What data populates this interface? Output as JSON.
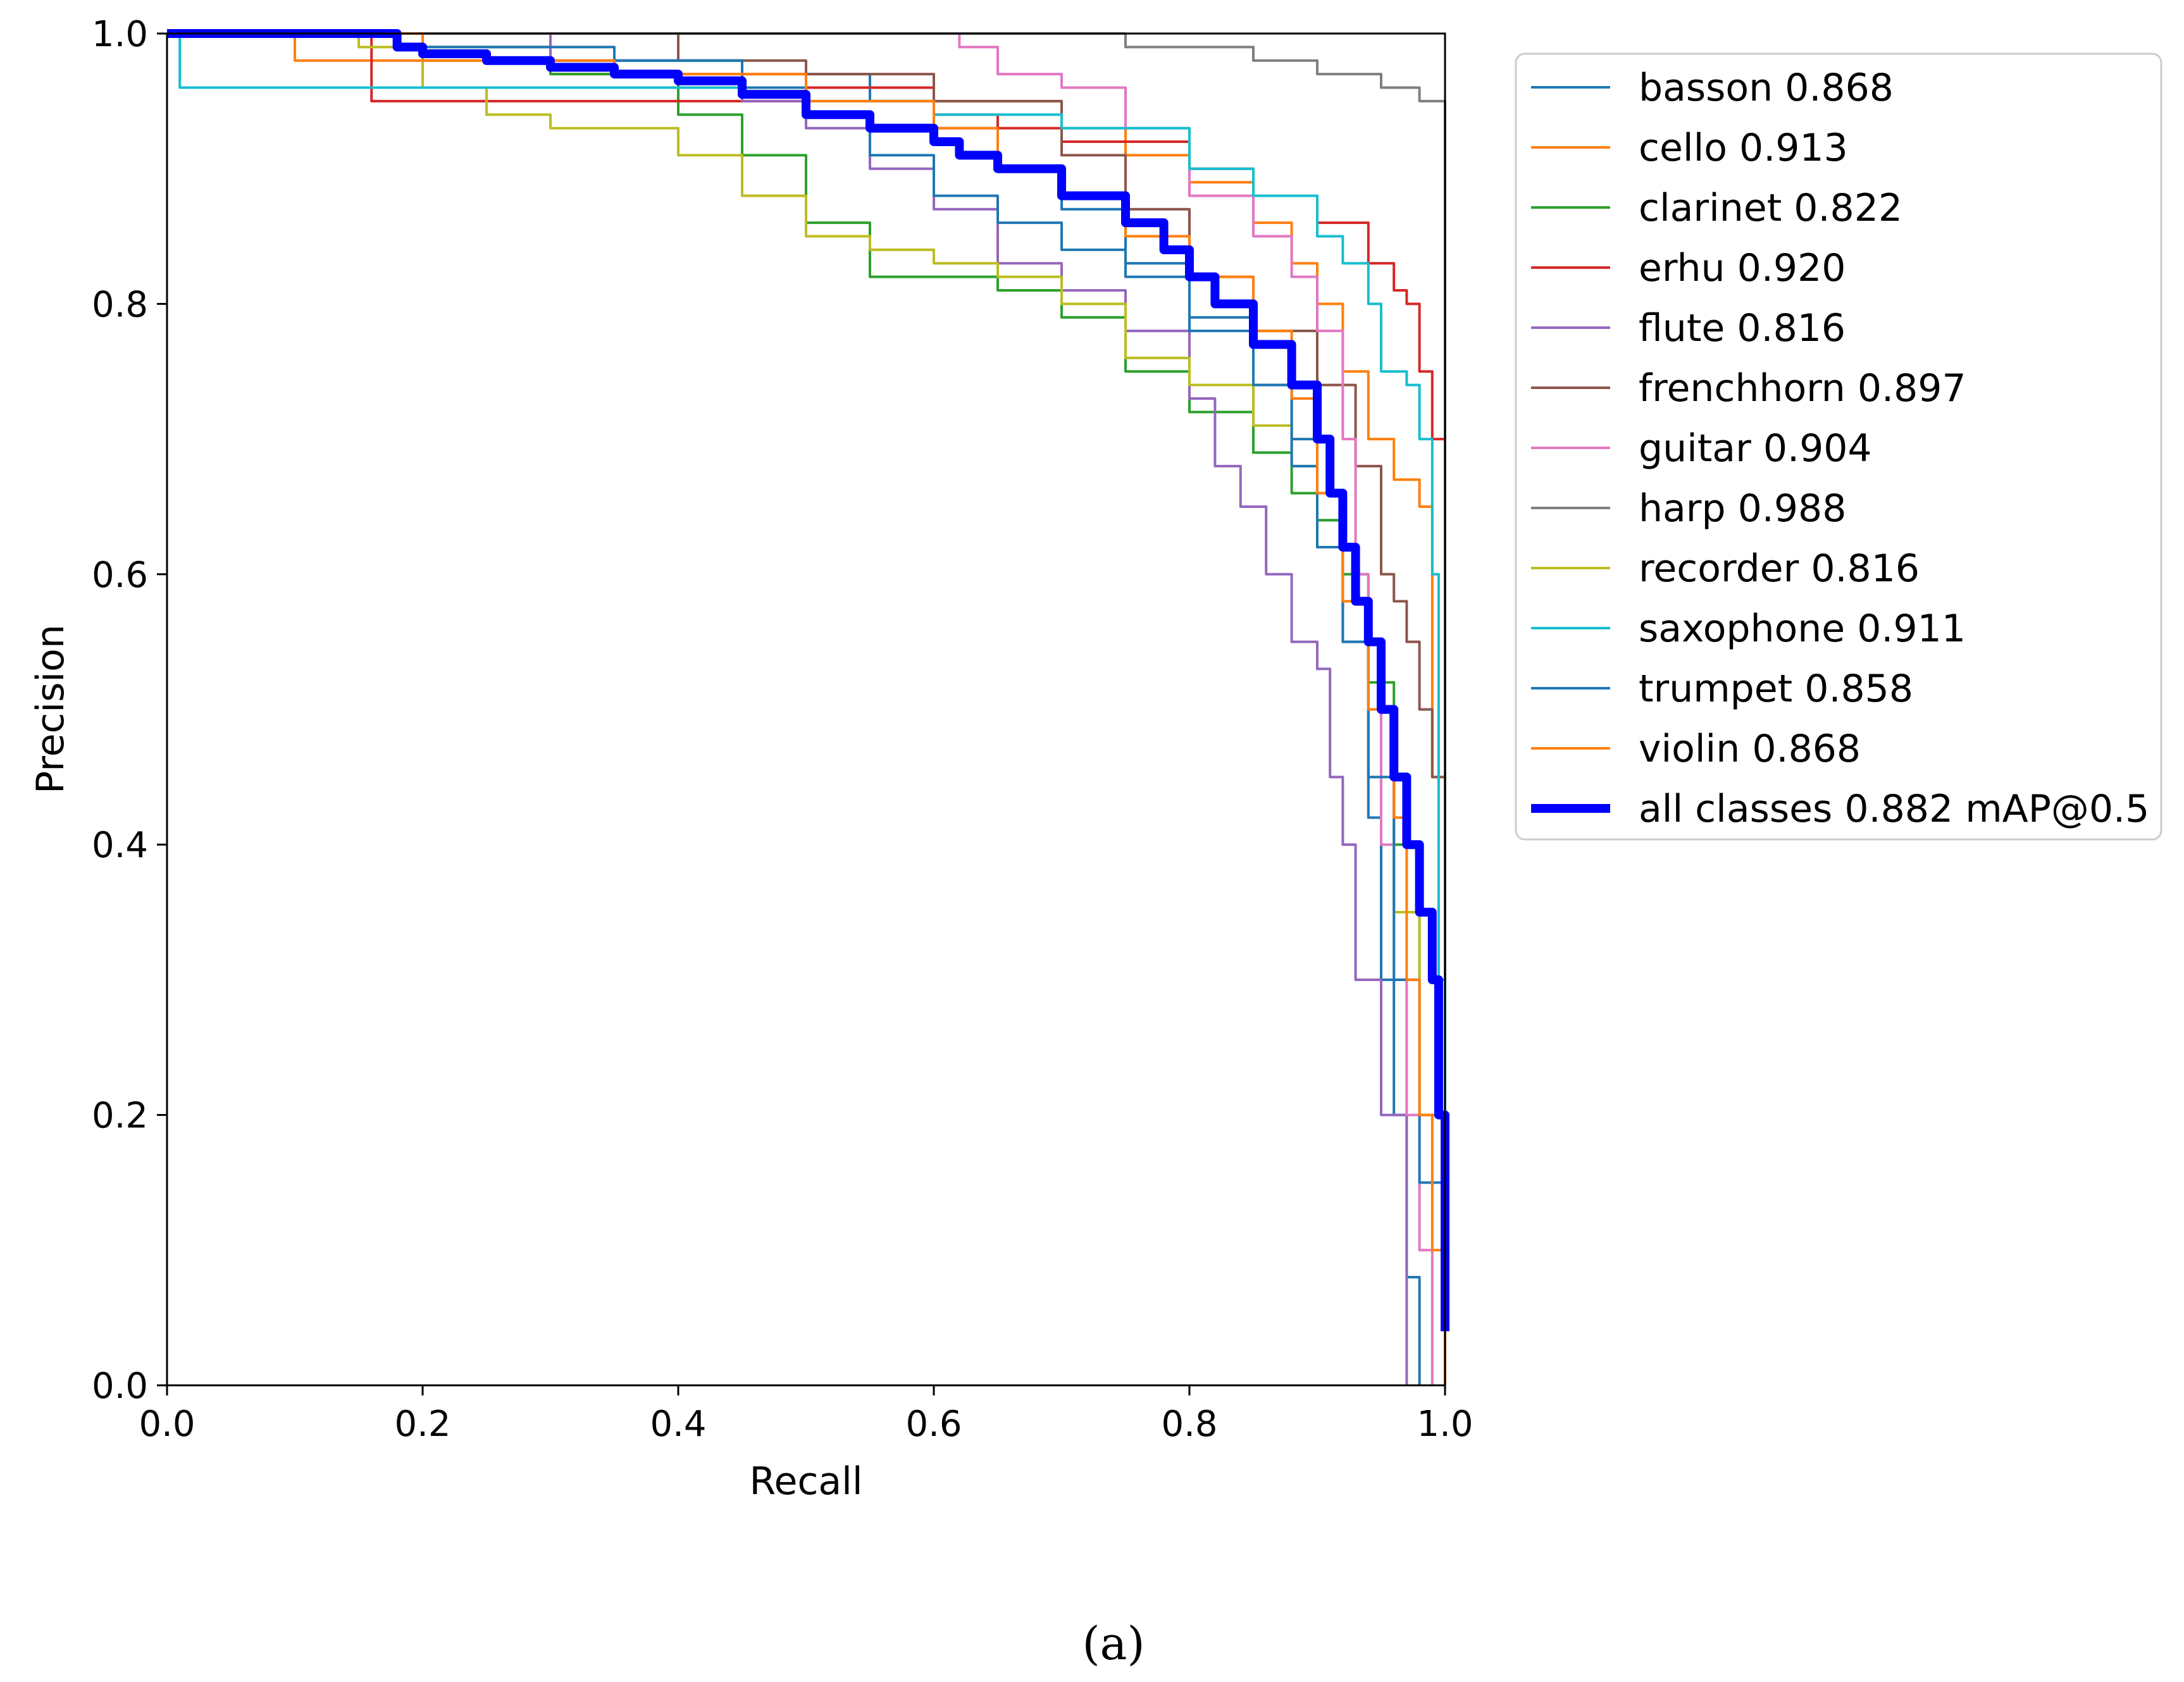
{
  "chart_data": {
    "type": "line",
    "title": "",
    "xlabel": "Recall",
    "ylabel": "Precision",
    "xlim": [
      0,
      1
    ],
    "ylim": [
      0,
      1
    ],
    "xticks": [
      "0.0",
      "0.2",
      "0.4",
      "0.6",
      "0.8",
      "1.0"
    ],
    "yticks": [
      "0.0",
      "0.2",
      "0.4",
      "0.6",
      "0.8",
      "1.0"
    ],
    "grid": false,
    "legend_position": "outside-right-top",
    "caption": "(a)",
    "series": [
      {
        "name": "basson 0.868",
        "color": "#1f77b4",
        "width": 4,
        "points": [
          [
            0,
            1
          ],
          [
            0.15,
            1
          ],
          [
            0.2,
            0.99
          ],
          [
            0.3,
            0.98
          ],
          [
            0.45,
            0.97
          ],
          [
            0.55,
            0.95
          ],
          [
            0.6,
            0.93
          ],
          [
            0.65,
            0.9
          ],
          [
            0.7,
            0.87
          ],
          [
            0.75,
            0.83
          ],
          [
            0.8,
            0.79
          ],
          [
            0.85,
            0.74
          ],
          [
            0.88,
            0.7
          ],
          [
            0.9,
            0.64
          ],
          [
            0.92,
            0.55
          ],
          [
            0.94,
            0.42
          ],
          [
            0.95,
            0.3
          ],
          [
            0.96,
            0.2
          ],
          [
            0.97,
            0.08
          ],
          [
            0.98,
            0
          ]
        ]
      },
      {
        "name": "cello 0.913",
        "color": "#ff7f0e",
        "width": 4,
        "points": [
          [
            0,
            1
          ],
          [
            0.1,
            0.98
          ],
          [
            0.3,
            0.97
          ],
          [
            0.5,
            0.96
          ],
          [
            0.6,
            0.95
          ],
          [
            0.7,
            0.93
          ],
          [
            0.75,
            0.91
          ],
          [
            0.8,
            0.89
          ],
          [
            0.85,
            0.86
          ],
          [
            0.88,
            0.83
          ],
          [
            0.9,
            0.8
          ],
          [
            0.92,
            0.75
          ],
          [
            0.94,
            0.7
          ],
          [
            0.96,
            0.67
          ],
          [
            0.98,
            0.65
          ],
          [
            0.99,
            0.45
          ],
          [
            1.0,
            0
          ]
        ]
      },
      {
        "name": "clarinet 0.822",
        "color": "#2ca02c",
        "width": 4,
        "points": [
          [
            0,
            1
          ],
          [
            0.2,
            0.99
          ],
          [
            0.3,
            0.97
          ],
          [
            0.4,
            0.94
          ],
          [
            0.45,
            0.91
          ],
          [
            0.5,
            0.86
          ],
          [
            0.55,
            0.82
          ],
          [
            0.65,
            0.81
          ],
          [
            0.7,
            0.79
          ],
          [
            0.75,
            0.75
          ],
          [
            0.8,
            0.72
          ],
          [
            0.85,
            0.69
          ],
          [
            0.88,
            0.66
          ],
          [
            0.9,
            0.64
          ],
          [
            0.92,
            0.6
          ],
          [
            0.94,
            0.52
          ],
          [
            0.96,
            0.4
          ],
          [
            0.98,
            0.2
          ],
          [
            1.0,
            0
          ]
        ]
      },
      {
        "name": "erhu 0.920",
        "color": "#d62728",
        "width": 4,
        "points": [
          [
            0,
            1
          ],
          [
            0.16,
            0.95
          ],
          [
            0.3,
            0.95
          ],
          [
            0.5,
            0.96
          ],
          [
            0.6,
            0.94
          ],
          [
            0.65,
            0.93
          ],
          [
            0.7,
            0.92
          ],
          [
            0.8,
            0.9
          ],
          [
            0.85,
            0.88
          ],
          [
            0.9,
            0.86
          ],
          [
            0.94,
            0.83
          ],
          [
            0.96,
            0.81
          ],
          [
            0.97,
            0.8
          ],
          [
            0.98,
            0.75
          ],
          [
            0.99,
            0.7
          ],
          [
            1.0,
            0.5
          ],
          [
            1.0,
            0
          ]
        ]
      },
      {
        "name": "flute 0.816",
        "color": "#9467bd",
        "width": 4,
        "points": [
          [
            0,
            1
          ],
          [
            0.3,
            0.98
          ],
          [
            0.45,
            0.95
          ],
          [
            0.5,
            0.93
          ],
          [
            0.55,
            0.9
          ],
          [
            0.6,
            0.87
          ],
          [
            0.65,
            0.83
          ],
          [
            0.7,
            0.81
          ],
          [
            0.75,
            0.78
          ],
          [
            0.8,
            0.73
          ],
          [
            0.82,
            0.68
          ],
          [
            0.84,
            0.65
          ],
          [
            0.86,
            0.6
          ],
          [
            0.88,
            0.55
          ],
          [
            0.9,
            0.53
          ],
          [
            0.91,
            0.45
          ],
          [
            0.92,
            0.4
          ],
          [
            0.93,
            0.3
          ],
          [
            0.95,
            0.2
          ],
          [
            0.97,
            0
          ]
        ]
      },
      {
        "name": "frenchhorn 0.897",
        "color": "#8c564b",
        "width": 4,
        "points": [
          [
            0,
            1
          ],
          [
            0.4,
            0.98
          ],
          [
            0.5,
            0.97
          ],
          [
            0.6,
            0.95
          ],
          [
            0.7,
            0.91
          ],
          [
            0.75,
            0.87
          ],
          [
            0.8,
            0.82
          ],
          [
            0.85,
            0.78
          ],
          [
            0.9,
            0.74
          ],
          [
            0.93,
            0.68
          ],
          [
            0.95,
            0.6
          ],
          [
            0.96,
            0.58
          ],
          [
            0.97,
            0.55
          ],
          [
            0.98,
            0.5
          ],
          [
            0.99,
            0.45
          ],
          [
            1.0,
            0.25
          ],
          [
            1.0,
            0
          ]
        ]
      },
      {
        "name": "guitar 0.904",
        "color": "#e377c2",
        "width": 4,
        "points": [
          [
            0.6,
            1
          ],
          [
            0.62,
            0.99
          ],
          [
            0.65,
            0.97
          ],
          [
            0.7,
            0.96
          ],
          [
            0.75,
            0.93
          ],
          [
            0.8,
            0.88
          ],
          [
            0.85,
            0.85
          ],
          [
            0.88,
            0.82
          ],
          [
            0.9,
            0.78
          ],
          [
            0.92,
            0.7
          ],
          [
            0.93,
            0.6
          ],
          [
            0.94,
            0.5
          ],
          [
            0.95,
            0.4
          ],
          [
            0.96,
            0.3
          ],
          [
            0.97,
            0.2
          ],
          [
            0.98,
            0.1
          ],
          [
            0.99,
            0
          ]
        ]
      },
      {
        "name": "harp 0.988",
        "color": "#7f7f7f",
        "width": 4,
        "points": [
          [
            0,
            1
          ],
          [
            0.6,
            1
          ],
          [
            0.75,
            0.99
          ],
          [
            0.85,
            0.98
          ],
          [
            0.9,
            0.97
          ],
          [
            0.95,
            0.96
          ],
          [
            0.98,
            0.95
          ],
          [
            1.0,
            0.94
          ],
          [
            1.0,
            0
          ]
        ]
      },
      {
        "name": "recorder 0.816",
        "color": "#bcbd22",
        "width": 4,
        "points": [
          [
            0,
            1
          ],
          [
            0.15,
            0.99
          ],
          [
            0.2,
            0.96
          ],
          [
            0.25,
            0.94
          ],
          [
            0.3,
            0.93
          ],
          [
            0.35,
            0.93
          ],
          [
            0.4,
            0.91
          ],
          [
            0.45,
            0.88
          ],
          [
            0.5,
            0.85
          ],
          [
            0.55,
            0.84
          ],
          [
            0.6,
            0.83
          ],
          [
            0.65,
            0.82
          ],
          [
            0.7,
            0.8
          ],
          [
            0.75,
            0.76
          ],
          [
            0.8,
            0.74
          ],
          [
            0.85,
            0.71
          ],
          [
            0.88,
            0.68
          ],
          [
            0.9,
            0.62
          ],
          [
            0.92,
            0.58
          ],
          [
            0.94,
            0.5
          ],
          [
            0.96,
            0.35
          ],
          [
            0.98,
            0.2
          ],
          [
            1.0,
            0
          ]
        ]
      },
      {
        "name": "saxophone 0.911",
        "color": "#17becf",
        "width": 4,
        "points": [
          [
            0,
            1
          ],
          [
            0.01,
            0.96
          ],
          [
            0.3,
            0.96
          ],
          [
            0.5,
            0.95
          ],
          [
            0.6,
            0.94
          ],
          [
            0.7,
            0.93
          ],
          [
            0.8,
            0.9
          ],
          [
            0.85,
            0.88
          ],
          [
            0.9,
            0.85
          ],
          [
            0.92,
            0.83
          ],
          [
            0.94,
            0.8
          ],
          [
            0.95,
            0.75
          ],
          [
            0.97,
            0.74
          ],
          [
            0.98,
            0.7
          ],
          [
            0.99,
            0.6
          ],
          [
            0.995,
            0.3
          ],
          [
            1.0,
            0
          ]
        ]
      },
      {
        "name": "trumpet 0.858",
        "color": "#1f77b4",
        "width": 4,
        "points": [
          [
            0,
            1
          ],
          [
            0.2,
            0.99
          ],
          [
            0.35,
            0.98
          ],
          [
            0.45,
            0.96
          ],
          [
            0.5,
            0.94
          ],
          [
            0.55,
            0.91
          ],
          [
            0.6,
            0.88
          ],
          [
            0.65,
            0.86
          ],
          [
            0.7,
            0.84
          ],
          [
            0.75,
            0.82
          ],
          [
            0.8,
            0.78
          ],
          [
            0.85,
            0.74
          ],
          [
            0.88,
            0.68
          ],
          [
            0.9,
            0.62
          ],
          [
            0.92,
            0.55
          ],
          [
            0.94,
            0.45
          ],
          [
            0.96,
            0.3
          ],
          [
            0.98,
            0.15
          ],
          [
            1.0,
            0
          ]
        ]
      },
      {
        "name": "violin 0.868",
        "color": "#ff7f0e",
        "width": 4,
        "points": [
          [
            0,
            1
          ],
          [
            0.2,
            0.98
          ],
          [
            0.35,
            0.97
          ],
          [
            0.5,
            0.95
          ],
          [
            0.6,
            0.93
          ],
          [
            0.65,
            0.9
          ],
          [
            0.7,
            0.88
          ],
          [
            0.75,
            0.85
          ],
          [
            0.8,
            0.82
          ],
          [
            0.85,
            0.78
          ],
          [
            0.88,
            0.73
          ],
          [
            0.9,
            0.66
          ],
          [
            0.92,
            0.58
          ],
          [
            0.94,
            0.5
          ],
          [
            0.96,
            0.42
          ],
          [
            0.97,
            0.3
          ],
          [
            0.98,
            0.2
          ],
          [
            0.99,
            0.1
          ],
          [
            1.0,
            0
          ]
        ]
      },
      {
        "name": "all classes 0.882 mAP@0.5",
        "color": "#0000ff",
        "width": 14,
        "points": [
          [
            0,
            1
          ],
          [
            0.15,
            1
          ],
          [
            0.18,
            0.99
          ],
          [
            0.2,
            0.985
          ],
          [
            0.25,
            0.98
          ],
          [
            0.3,
            0.975
          ],
          [
            0.35,
            0.97
          ],
          [
            0.4,
            0.965
          ],
          [
            0.45,
            0.955
          ],
          [
            0.5,
            0.94
          ],
          [
            0.55,
            0.93
          ],
          [
            0.6,
            0.92
          ],
          [
            0.62,
            0.91
          ],
          [
            0.65,
            0.9
          ],
          [
            0.7,
            0.88
          ],
          [
            0.75,
            0.86
          ],
          [
            0.78,
            0.84
          ],
          [
            0.8,
            0.82
          ],
          [
            0.82,
            0.8
          ],
          [
            0.85,
            0.77
          ],
          [
            0.88,
            0.74
          ],
          [
            0.9,
            0.7
          ],
          [
            0.91,
            0.66
          ],
          [
            0.92,
            0.62
          ],
          [
            0.93,
            0.58
          ],
          [
            0.94,
            0.55
          ],
          [
            0.95,
            0.5
          ],
          [
            0.96,
            0.45
          ],
          [
            0.97,
            0.4
          ],
          [
            0.98,
            0.35
          ],
          [
            0.99,
            0.3
          ],
          [
            0.995,
            0.2
          ],
          [
            1.0,
            0.1
          ],
          [
            1.0,
            0.04
          ]
        ]
      }
    ]
  }
}
